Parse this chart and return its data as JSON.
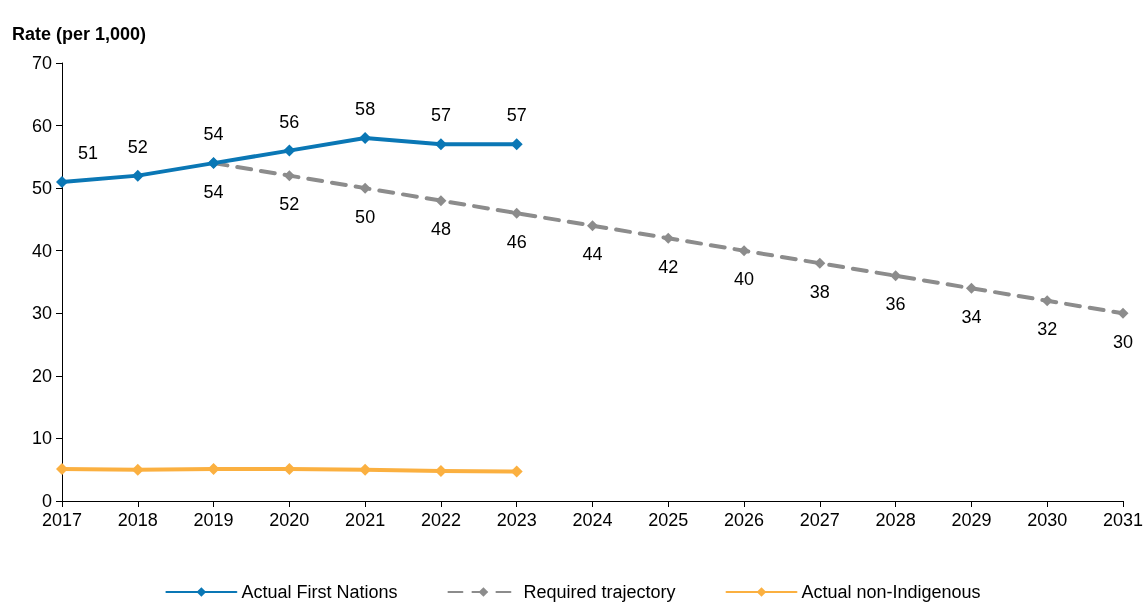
{
  "chart_data": {
    "type": "line",
    "ylabel": "Rate (per 1,000)",
    "categories": [
      "2017",
      "2018",
      "2019",
      "2020",
      "2021",
      "2022",
      "2023",
      "2024",
      "2025",
      "2026",
      "2027",
      "2028",
      "2029",
      "2030",
      "2031"
    ],
    "series": [
      {
        "name": "Actual First Nations",
        "color": "#0a77b5",
        "line_style": "solid",
        "values": [
          51,
          52,
          54,
          56,
          58,
          57,
          57,
          null,
          null,
          null,
          null,
          null,
          null,
          null,
          null
        ],
        "value_labels": [
          "51",
          "52",
          "54",
          "56",
          "58",
          "57",
          "57",
          null,
          null,
          null,
          null,
          null,
          null,
          null,
          null
        ]
      },
      {
        "name": "Required trajectory",
        "color": "#8c8c8c",
        "line_style": "dashed",
        "values": [
          null,
          null,
          54,
          52,
          50,
          48,
          46,
          44,
          42,
          40,
          38,
          36,
          34,
          32,
          30
        ],
        "value_labels": [
          null,
          null,
          "54",
          "52",
          "50",
          "48",
          "46",
          "44",
          "42",
          "40",
          "38",
          "36",
          "34",
          "32",
          "30"
        ]
      },
      {
        "name": "Actual non-Indigenous",
        "color": "#fbb040",
        "line_style": "solid",
        "values": [
          5.1,
          5.0,
          5.1,
          5.1,
          5.0,
          4.8,
          4.7,
          null,
          null,
          null,
          null,
          null,
          null,
          null,
          null
        ]
      }
    ],
    "ylim": [
      0,
      70
    ],
    "yticks": [
      0,
      10,
      20,
      30,
      40,
      50,
      60,
      70
    ],
    "grid": false,
    "legend": "bottom",
    "marker": "diamond"
  }
}
